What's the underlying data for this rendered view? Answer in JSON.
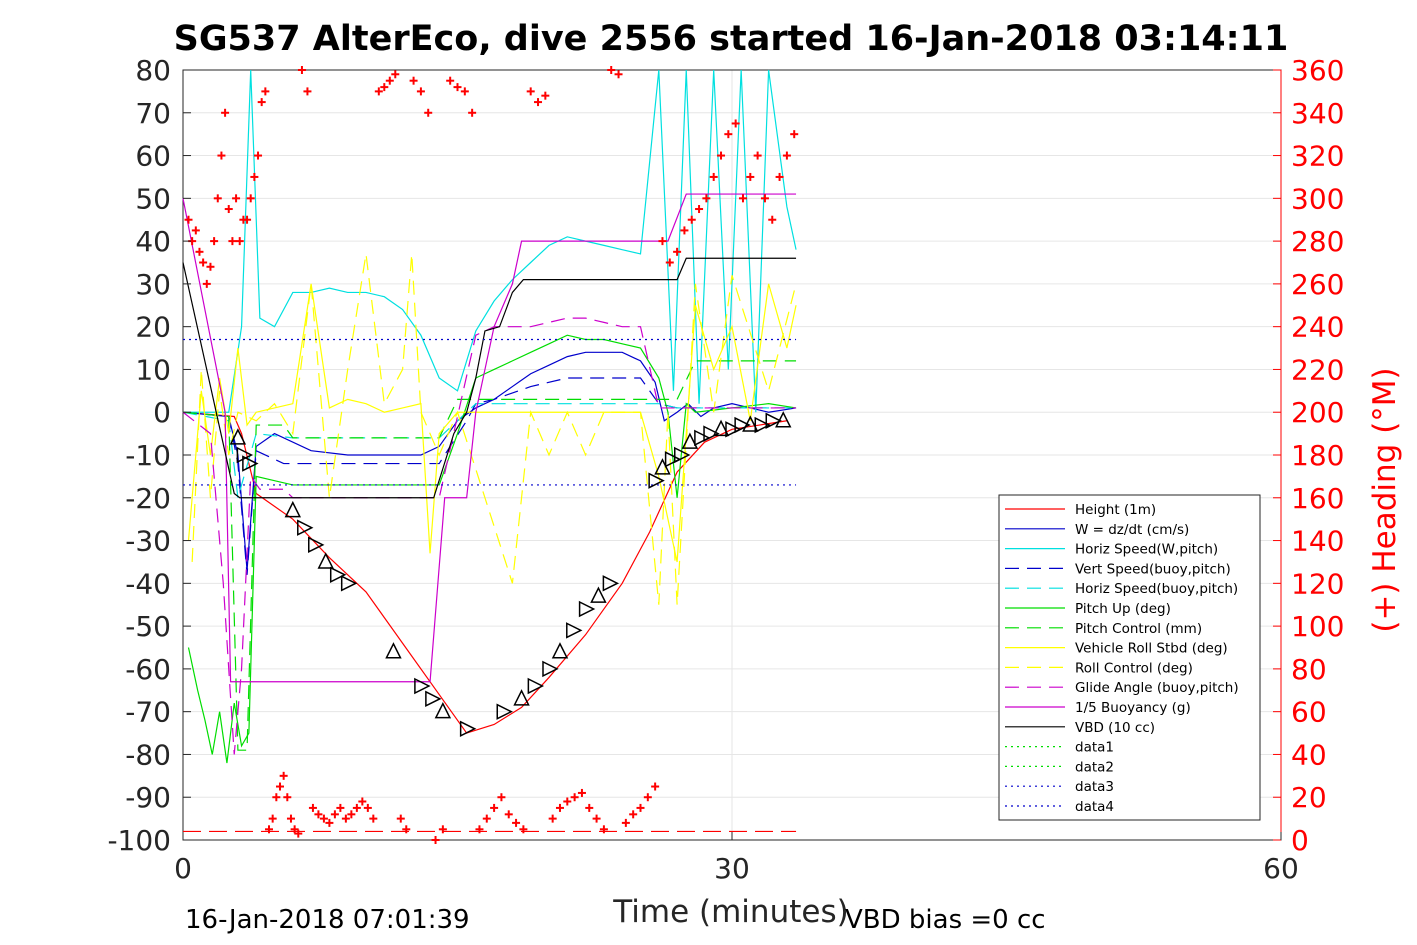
{
  "chart_data": {
    "type": "line",
    "title": "SG537 AlterEco, dive 2556 started 16-Jan-2018 03:14:11",
    "xlabel": "Time (minutes)",
    "ylabel_right": "(+) Heading (°M)",
    "footer_left": "16-Jan-2018 07:01:39",
    "footer_right": "VBD bias =0 cc",
    "xlim": [
      0,
      60
    ],
    "ylim": [
      -100,
      80
    ],
    "ylim_right": [
      0,
      360
    ],
    "x_ticks": [
      "0",
      "30",
      "60"
    ],
    "y_ticks": [
      "80",
      "70",
      "60",
      "50",
      "40",
      "30",
      "20",
      "10",
      "0",
      "-10",
      "-20",
      "-30",
      "-40",
      "-50",
      "-60",
      "-70",
      "-80",
      "-90",
      "-100"
    ],
    "y_ticks_right": [
      "360",
      "340",
      "320",
      "300",
      "280",
      "260",
      "240",
      "220",
      "200",
      "180",
      "160",
      "140",
      "120",
      "100",
      "80",
      "60",
      "40",
      "20",
      "0"
    ],
    "grid": true,
    "legend_position": "bottom-right",
    "colors": {
      "red": "#ff0000",
      "blue": "#0000cc",
      "cyan": "#00e0e0",
      "green": "#00dd00",
      "yellow": "#ffff00",
      "magenta": "#cc00cc",
      "black": "#000000"
    },
    "series": [
      {
        "name": "Height (1m)",
        "color": "#ff0000",
        "dash": "solid",
        "x": [
          0,
          2.8,
          3.2,
          4,
          6,
          8,
          10,
          12,
          14,
          15.5,
          17,
          18.5,
          20,
          22,
          24,
          25.5,
          27,
          28.5,
          30,
          31.5,
          33
        ],
        "y": [
          0,
          -1,
          -5,
          -19,
          -25,
          -34,
          -42,
          -54,
          -66,
          -75,
          -73,
          -69,
          -62,
          -52,
          -40,
          -28,
          -14,
          -7,
          -4,
          -3,
          -2
        ]
      },
      {
        "name": "W = dz/dt (cm/s)",
        "color": "#0000cc",
        "dash": "solid",
        "x": [
          0,
          2.5,
          3.0,
          3.5,
          4,
          5,
          7,
          9,
          11,
          13,
          14,
          15,
          16,
          17,
          18,
          19,
          20,
          21,
          22,
          23,
          24,
          25,
          25.8,
          26.3,
          27,
          27.6,
          28.3,
          29,
          30,
          31,
          32,
          33.5
        ],
        "y": [
          0,
          -1,
          -10,
          -37,
          -8,
          -5,
          -9,
          -10,
          -10,
          -10,
          -8,
          -2,
          1,
          3,
          6,
          9,
          11,
          13,
          14,
          14,
          14,
          12,
          7,
          -2,
          0,
          2,
          -1,
          1,
          2,
          1,
          0,
          1
        ]
      },
      {
        "name": "Horiz Speed(W,pitch)",
        "color": "#00e0e0",
        "dash": "solid",
        "x": [
          0,
          2.5,
          3.2,
          3.7,
          4.2,
          5,
          6,
          7,
          8,
          9,
          10,
          11,
          12,
          13,
          14,
          15,
          16,
          17,
          18,
          19,
          20,
          21,
          22,
          23,
          24,
          25,
          26,
          26.8,
          27.5,
          28.2,
          29,
          29.8,
          30.5,
          31.3,
          32,
          33,
          33.5
        ],
        "y": [
          0,
          0,
          20,
          80,
          22,
          20,
          28,
          28,
          29,
          28,
          28,
          27,
          24,
          18,
          8,
          5,
          19,
          26,
          31,
          35,
          39,
          41,
          40,
          39,
          38,
          37,
          80,
          5,
          80,
          2,
          80,
          10,
          80,
          0,
          80,
          48,
          38
        ]
      },
      {
        "name": "Vert Speed(buoy,pitch)",
        "color": "#0000cc",
        "dash": "dash",
        "x": [
          0,
          2.5,
          3,
          3.5,
          4,
          5.5,
          14,
          15.5,
          16,
          17,
          19,
          21,
          23,
          25,
          26,
          27,
          33.5
        ],
        "y": [
          0,
          -1,
          -12,
          -38,
          -9,
          -12,
          -12,
          -2,
          2,
          3,
          6,
          8,
          8,
          8,
          2,
          1,
          1
        ]
      },
      {
        "name": "Horiz Speed(buoy,pitch)",
        "color": "#00e0e0",
        "dash": "dash",
        "x": [
          0,
          2.5,
          3,
          4,
          6,
          14,
          16,
          26,
          27,
          33.5
        ],
        "y": [
          0,
          -2,
          -20,
          -5,
          -6,
          -6,
          2,
          2,
          1,
          1
        ]
      },
      {
        "name": "Pitch Up (deg)",
        "color": "#00dd00",
        "dash": "solid",
        "x": [
          0.3,
          0.8,
          1.2,
          1.6,
          2.0,
          2.4,
          2.8,
          3.2,
          3.6,
          4,
          5,
          6,
          8,
          10,
          12,
          14,
          15,
          16,
          17,
          18,
          19,
          20,
          21,
          22,
          23,
          24,
          25,
          26,
          26.5,
          27,
          27.5,
          28,
          30,
          32,
          33.5
        ],
        "y": [
          -55,
          -65,
          -72,
          -80,
          -70,
          -82,
          -68,
          -78,
          -75,
          -15,
          -16,
          -17,
          -17,
          -17,
          -17,
          -17,
          -5,
          8,
          10,
          12,
          14,
          16,
          18,
          17,
          17,
          16,
          15,
          8,
          0,
          -20,
          2,
          0,
          1,
          2,
          1
        ]
      },
      {
        "name": "Pitch Control (mm)",
        "color": "#00dd00",
        "dash": "dash",
        "x": [
          0,
          2.5,
          3,
          3.5,
          4,
          5.5,
          6,
          14,
          15,
          16,
          27,
          28,
          33.5
        ],
        "y": [
          0,
          -1,
          -79,
          -79,
          -3,
          -3,
          -6,
          -6,
          3,
          3,
          3,
          12,
          12
        ]
      },
      {
        "name": "Vehicle Roll Stbd (deg)",
        "color": "#ffff00",
        "dash": "solid",
        "x": [
          0.3,
          1,
          1.5,
          2,
          2.5,
          3,
          3.5,
          4,
          5,
          6,
          7,
          8,
          9,
          10,
          11,
          12,
          13,
          13.5,
          14,
          15,
          16,
          17,
          18,
          19,
          20,
          21,
          22,
          23,
          24,
          25,
          26,
          27,
          28,
          29,
          30,
          31,
          32,
          33,
          33.5
        ],
        "y": [
          -30,
          5,
          -10,
          8,
          -5,
          15,
          -3,
          0,
          1,
          2,
          30,
          1,
          3,
          2,
          0,
          1,
          2,
          -33,
          -5,
          0,
          0,
          0,
          0,
          0,
          0,
          0,
          0,
          0,
          0,
          0,
          -15,
          -35,
          25,
          10,
          20,
          -2,
          30,
          15,
          25
        ]
      },
      {
        "name": "Roll Control (deg)",
        "color": "#ffff00",
        "dash": "dash",
        "x": [
          0.5,
          1,
          1.5,
          2,
          2.5,
          3,
          4,
          5,
          6,
          7,
          8,
          9,
          10,
          11,
          12,
          12.5,
          13,
          14,
          15,
          18,
          19,
          20,
          21,
          22,
          23,
          25,
          26,
          26.5,
          27,
          28,
          29,
          30,
          32,
          33.5
        ],
        "y": [
          -35,
          10,
          -20,
          5,
          -10,
          0,
          -2,
          2,
          -5,
          30,
          -20,
          10,
          37,
          2,
          10,
          37,
          0,
          -10,
          0,
          -40,
          0,
          -10,
          0,
          -10,
          0,
          0,
          -45,
          0,
          -45,
          30,
          0,
          32,
          5,
          30
        ]
      },
      {
        "name": "Glide Angle (buoy,pitch)",
        "color": "#cc00cc",
        "dash": "dash",
        "x": [
          0,
          1.5,
          2.2,
          2.8,
          3.2,
          3.7,
          4.2,
          5.5,
          6,
          14,
          16,
          17,
          18,
          19,
          20,
          21,
          22,
          23,
          24,
          25,
          26,
          27,
          30,
          33.5
        ],
        "y": [
          0,
          -5,
          -40,
          -80,
          -60,
          -15,
          -18,
          -18,
          -20,
          -20,
          18,
          20,
          20,
          20,
          21,
          22,
          22,
          21,
          20,
          20,
          1,
          1,
          1,
          1
        ]
      },
      {
        "name": "1/5 Buoyancy (g)",
        "color": "#cc00cc",
        "dash": "solid",
        "x": [
          0,
          2.3,
          2.6,
          3.2,
          13.5,
          14.3,
          15,
          15.5,
          16,
          17,
          18,
          18.5,
          26.5,
          27.5,
          33.5
        ],
        "y": [
          50,
          0,
          -63,
          -63,
          -63,
          -20,
          -20,
          -20,
          0,
          20,
          30,
          40,
          40,
          51,
          51
        ]
      },
      {
        "name": "VBD (10 cc)",
        "color": "#000000",
        "dash": "solid",
        "x": [
          0,
          2.8,
          3.1,
          13.7,
          14.8,
          15.5,
          16,
          16.5,
          17.3,
          18,
          18.6,
          27,
          27.5,
          33.5
        ],
        "y": [
          35,
          -19,
          -20,
          -20,
          -5,
          0,
          8,
          19,
          20,
          28,
          31,
          31,
          36,
          36
        ]
      },
      {
        "name": "data1",
        "color": "#00dd00",
        "dash": "dot",
        "x": [],
        "y": []
      },
      {
        "name": "data2",
        "color": "#00dd00",
        "dash": "dot",
        "x": [],
        "y": []
      },
      {
        "name": "data3",
        "color": "#0000cc",
        "dash": "dot",
        "x": [
          0,
          33.5
        ],
        "y": [
          17,
          17
        ]
      },
      {
        "name": "data4",
        "color": "#0000cc",
        "dash": "dot",
        "x": [
          0,
          33.5
        ],
        "y": [
          -17,
          -17
        ]
      }
    ],
    "reference_line": {
      "color": "#ff0000",
      "dash": "longdash",
      "x": [
        0,
        33.5
      ],
      "y": [
        -98,
        -98
      ]
    },
    "heading_points": {
      "color": "#ff0000",
      "marker": "+",
      "x": [
        0.3,
        0.5,
        0.7,
        0.9,
        1.1,
        1.3,
        1.5,
        1.7,
        1.9,
        2.1,
        2.3,
        2.5,
        2.7,
        2.9,
        3.1,
        3.3,
        3.5,
        3.7,
        3.9,
        4.1,
        4.3,
        4.5,
        4.7,
        4.9,
        5.1,
        5.3,
        5.5,
        5.7,
        5.9,
        6.1,
        6.3,
        6.5,
        6.8,
        7.1,
        7.4,
        7.7,
        8.0,
        8.3,
        8.6,
        8.9,
        9.2,
        9.5,
        9.8,
        10.1,
        10.4,
        10.7,
        11.0,
        11.3,
        11.6,
        11.9,
        12.2,
        12.6,
        13.0,
        13.4,
        13.8,
        14.2,
        14.6,
        15.0,
        15.4,
        15.8,
        16.2,
        16.6,
        17.0,
        17.4,
        17.8,
        18.2,
        18.6,
        19.0,
        19.4,
        19.8,
        20.2,
        20.6,
        21.0,
        21.4,
        21.8,
        22.2,
        22.6,
        23.0,
        23.4,
        23.8,
        24.2,
        24.6,
        25.0,
        25.4,
        25.8,
        26.2,
        26.6,
        27.0,
        27.4,
        27.8,
        28.2,
        28.6,
        29.0,
        29.4,
        29.8,
        30.2,
        30.6,
        31.0,
        31.4,
        31.8,
        32.2,
        32.6,
        33.0,
        33.4
      ],
      "y": [
        290,
        280,
        285,
        275,
        270,
        260,
        268,
        280,
        300,
        320,
        340,
        295,
        280,
        300,
        280,
        290,
        290,
        300,
        310,
        320,
        345,
        350,
        5,
        10,
        20,
        25,
        30,
        20,
        10,
        5,
        3,
        360,
        350,
        15,
        12,
        10,
        8,
        12,
        15,
        10,
        12,
        15,
        18,
        15,
        10,
        350,
        352,
        355,
        358,
        10,
        5,
        355,
        350,
        340,
        0,
        5,
        355,
        352,
        350,
        340,
        5,
        10,
        15,
        20,
        12,
        8,
        5,
        350,
        345,
        348,
        10,
        15,
        18,
        20,
        22,
        15,
        10,
        5,
        360,
        358,
        8,
        12,
        15,
        20,
        25,
        280,
        270,
        275,
        285,
        290,
        295,
        300,
        310,
        320,
        330,
        335,
        300,
        310,
        320,
        300,
        290,
        310,
        320,
        330
      ]
    },
    "triangle_markers": {
      "color": "#000000",
      "x": [
        3,
        3.3,
        3.6,
        6,
        6.6,
        7.2,
        7.8,
        8.4,
        9,
        11.5,
        13,
        13.6,
        14.2,
        15.5,
        17.5,
        18.5,
        19.2,
        20,
        20.6,
        21.3,
        22,
        22.7,
        23.3,
        25.8,
        26.2,
        26.7,
        27.2,
        27.7,
        28.3,
        28.8,
        29.4,
        30,
        30.5,
        31,
        31.6,
        32.2,
        32.8
      ],
      "y": [
        -6,
        -10,
        -12,
        -23,
        -27,
        -31,
        -35,
        -38,
        -40,
        -56,
        -64,
        -67,
        -70,
        -74,
        -70,
        -67,
        -64,
        -60,
        -56,
        -51,
        -46,
        -43,
        -40,
        -16,
        -13,
        -11,
        -10,
        -7,
        -6,
        -5,
        -4,
        -4,
        -3,
        -3,
        -3,
        -2,
        -2
      ]
    }
  }
}
